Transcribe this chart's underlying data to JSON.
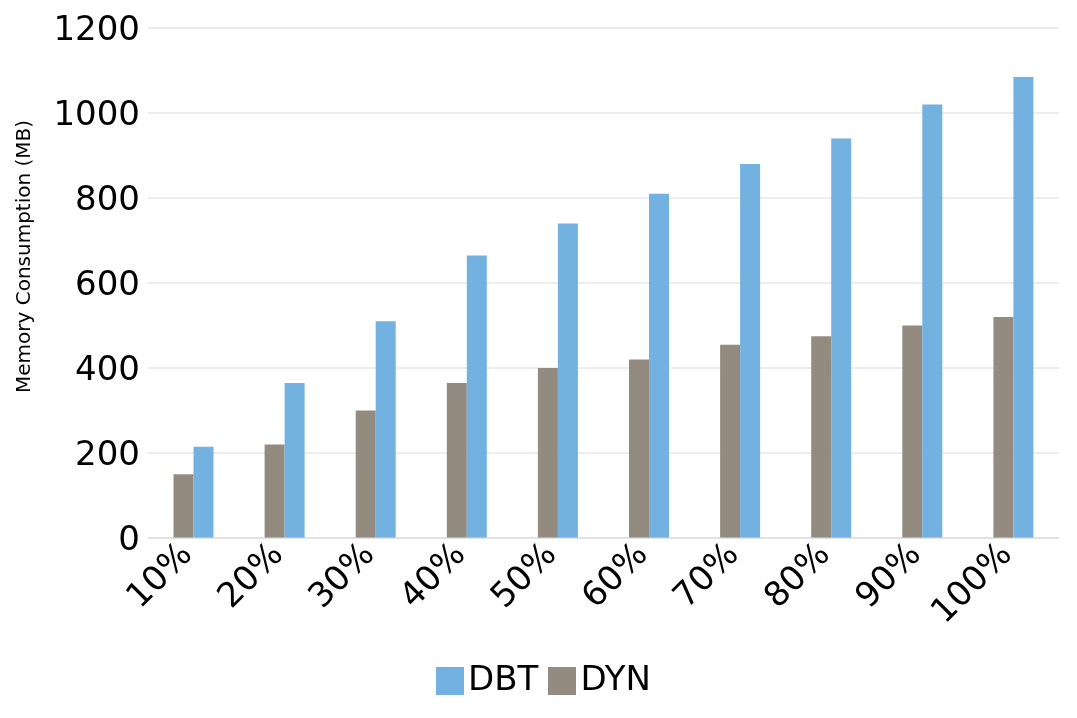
{
  "chart_data": {
    "type": "bar",
    "ylabel": "Memory Consumption (MB)",
    "categories": [
      "10%",
      "20%",
      "30%",
      "40%",
      "50%",
      "60%",
      "70%",
      "80%",
      "90%",
      "100%"
    ],
    "series": [
      {
        "name": "DYN",
        "color": "#948b80",
        "values": [
          150,
          220,
          300,
          365,
          400,
          420,
          455,
          475,
          500,
          520
        ]
      },
      {
        "name": "DBT",
        "color": "#73b2e0",
        "values": [
          215,
          365,
          510,
          665,
          740,
          810,
          880,
          940,
          1020,
          1085
        ]
      }
    ],
    "ylim": [
      0,
      1200
    ],
    "yticks": [
      0,
      200,
      400,
      600,
      800,
      1000,
      1200
    ],
    "grid": "y",
    "legend": "bottom"
  }
}
